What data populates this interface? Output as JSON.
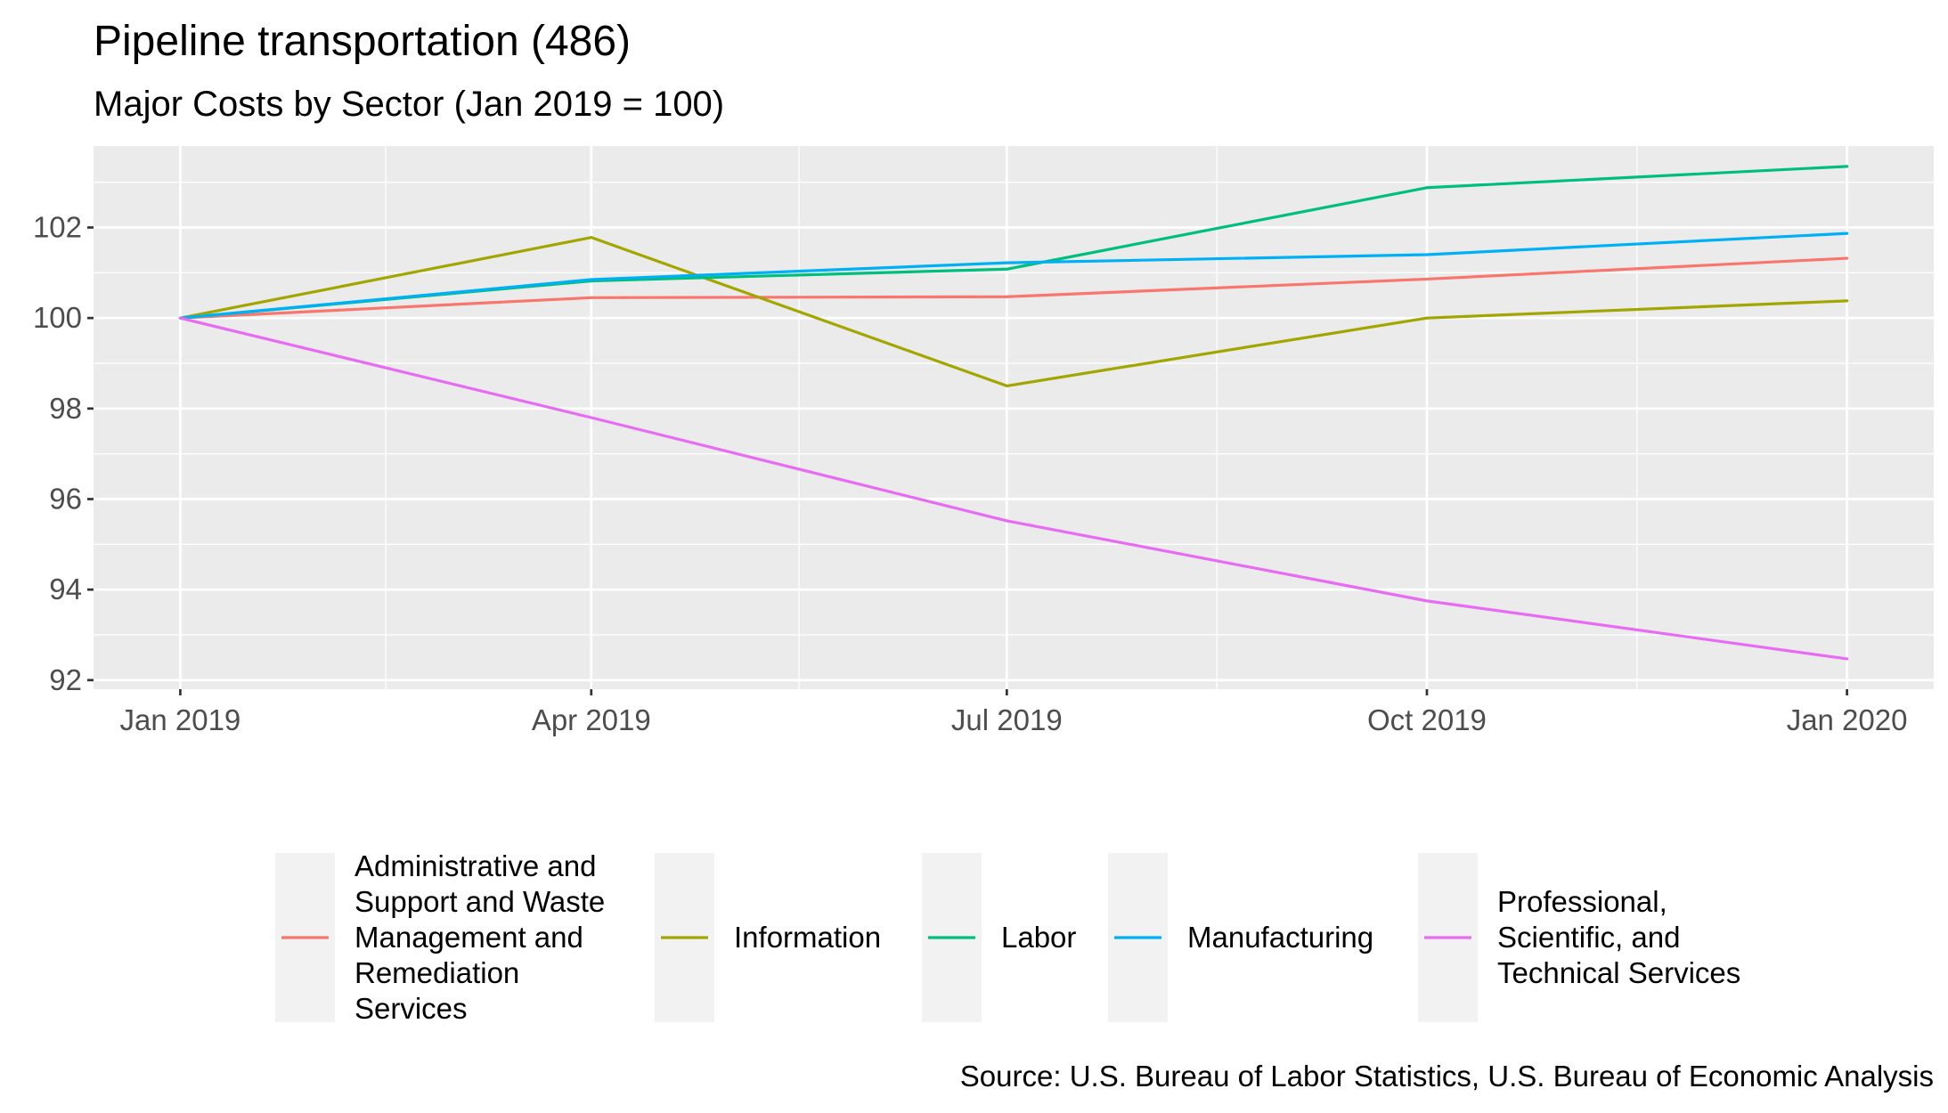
{
  "chart_data": {
    "type": "line",
    "title": "Pipeline transportation (486)",
    "subtitle": "Major Costs by Sector (Jan 2019 = 100)",
    "caption": "Source: U.S. Bureau of Labor Statistics, U.S. Bureau of Economic Analysis",
    "xlabel": "",
    "ylabel": "",
    "x": [
      "2019-01-01",
      "2019-04-01",
      "2019-07-01",
      "2019-10-01",
      "2020-01-01"
    ],
    "x_tick_labels": [
      "Jan 2019",
      "Apr 2019",
      "Jul 2019",
      "Oct 2019",
      "Jan 2020"
    ],
    "x_range": [
      "2018-12-13",
      "2020-01-20"
    ],
    "y_ticks": [
      92,
      94,
      96,
      98,
      100,
      102
    ],
    "ylim": [
      91.8,
      103.8
    ],
    "grid": true,
    "legend_position": "bottom",
    "series": [
      {
        "name": "Administrative and Support and Waste Management and Remediation Services",
        "legend_lines": [
          "Administrative and",
          "Support and Waste",
          "Management and",
          "Remediation",
          "Services"
        ],
        "color": "#F8766D",
        "values": [
          100,
          100.45,
          100.47,
          100.86,
          101.32
        ]
      },
      {
        "name": "Information",
        "legend_lines": [
          "Information"
        ],
        "color": "#A3A500",
        "values": [
          100,
          101.78,
          98.5,
          100,
          100.38
        ]
      },
      {
        "name": "Labor",
        "legend_lines": [
          "Labor"
        ],
        "color": "#00BF7D",
        "values": [
          100,
          100.82,
          101.08,
          102.88,
          103.35
        ]
      },
      {
        "name": "Manufacturing",
        "legend_lines": [
          "Manufacturing"
        ],
        "color": "#00B0F6",
        "values": [
          100,
          100.85,
          101.22,
          101.4,
          101.87
        ]
      },
      {
        "name": "Professional, Scientific, and Technical Services",
        "legend_lines": [
          "Professional,",
          "Scientific, and",
          "Technical Services"
        ],
        "color": "#E76BF3",
        "values": [
          100,
          97.8,
          95.52,
          93.75,
          92.47
        ]
      }
    ]
  }
}
